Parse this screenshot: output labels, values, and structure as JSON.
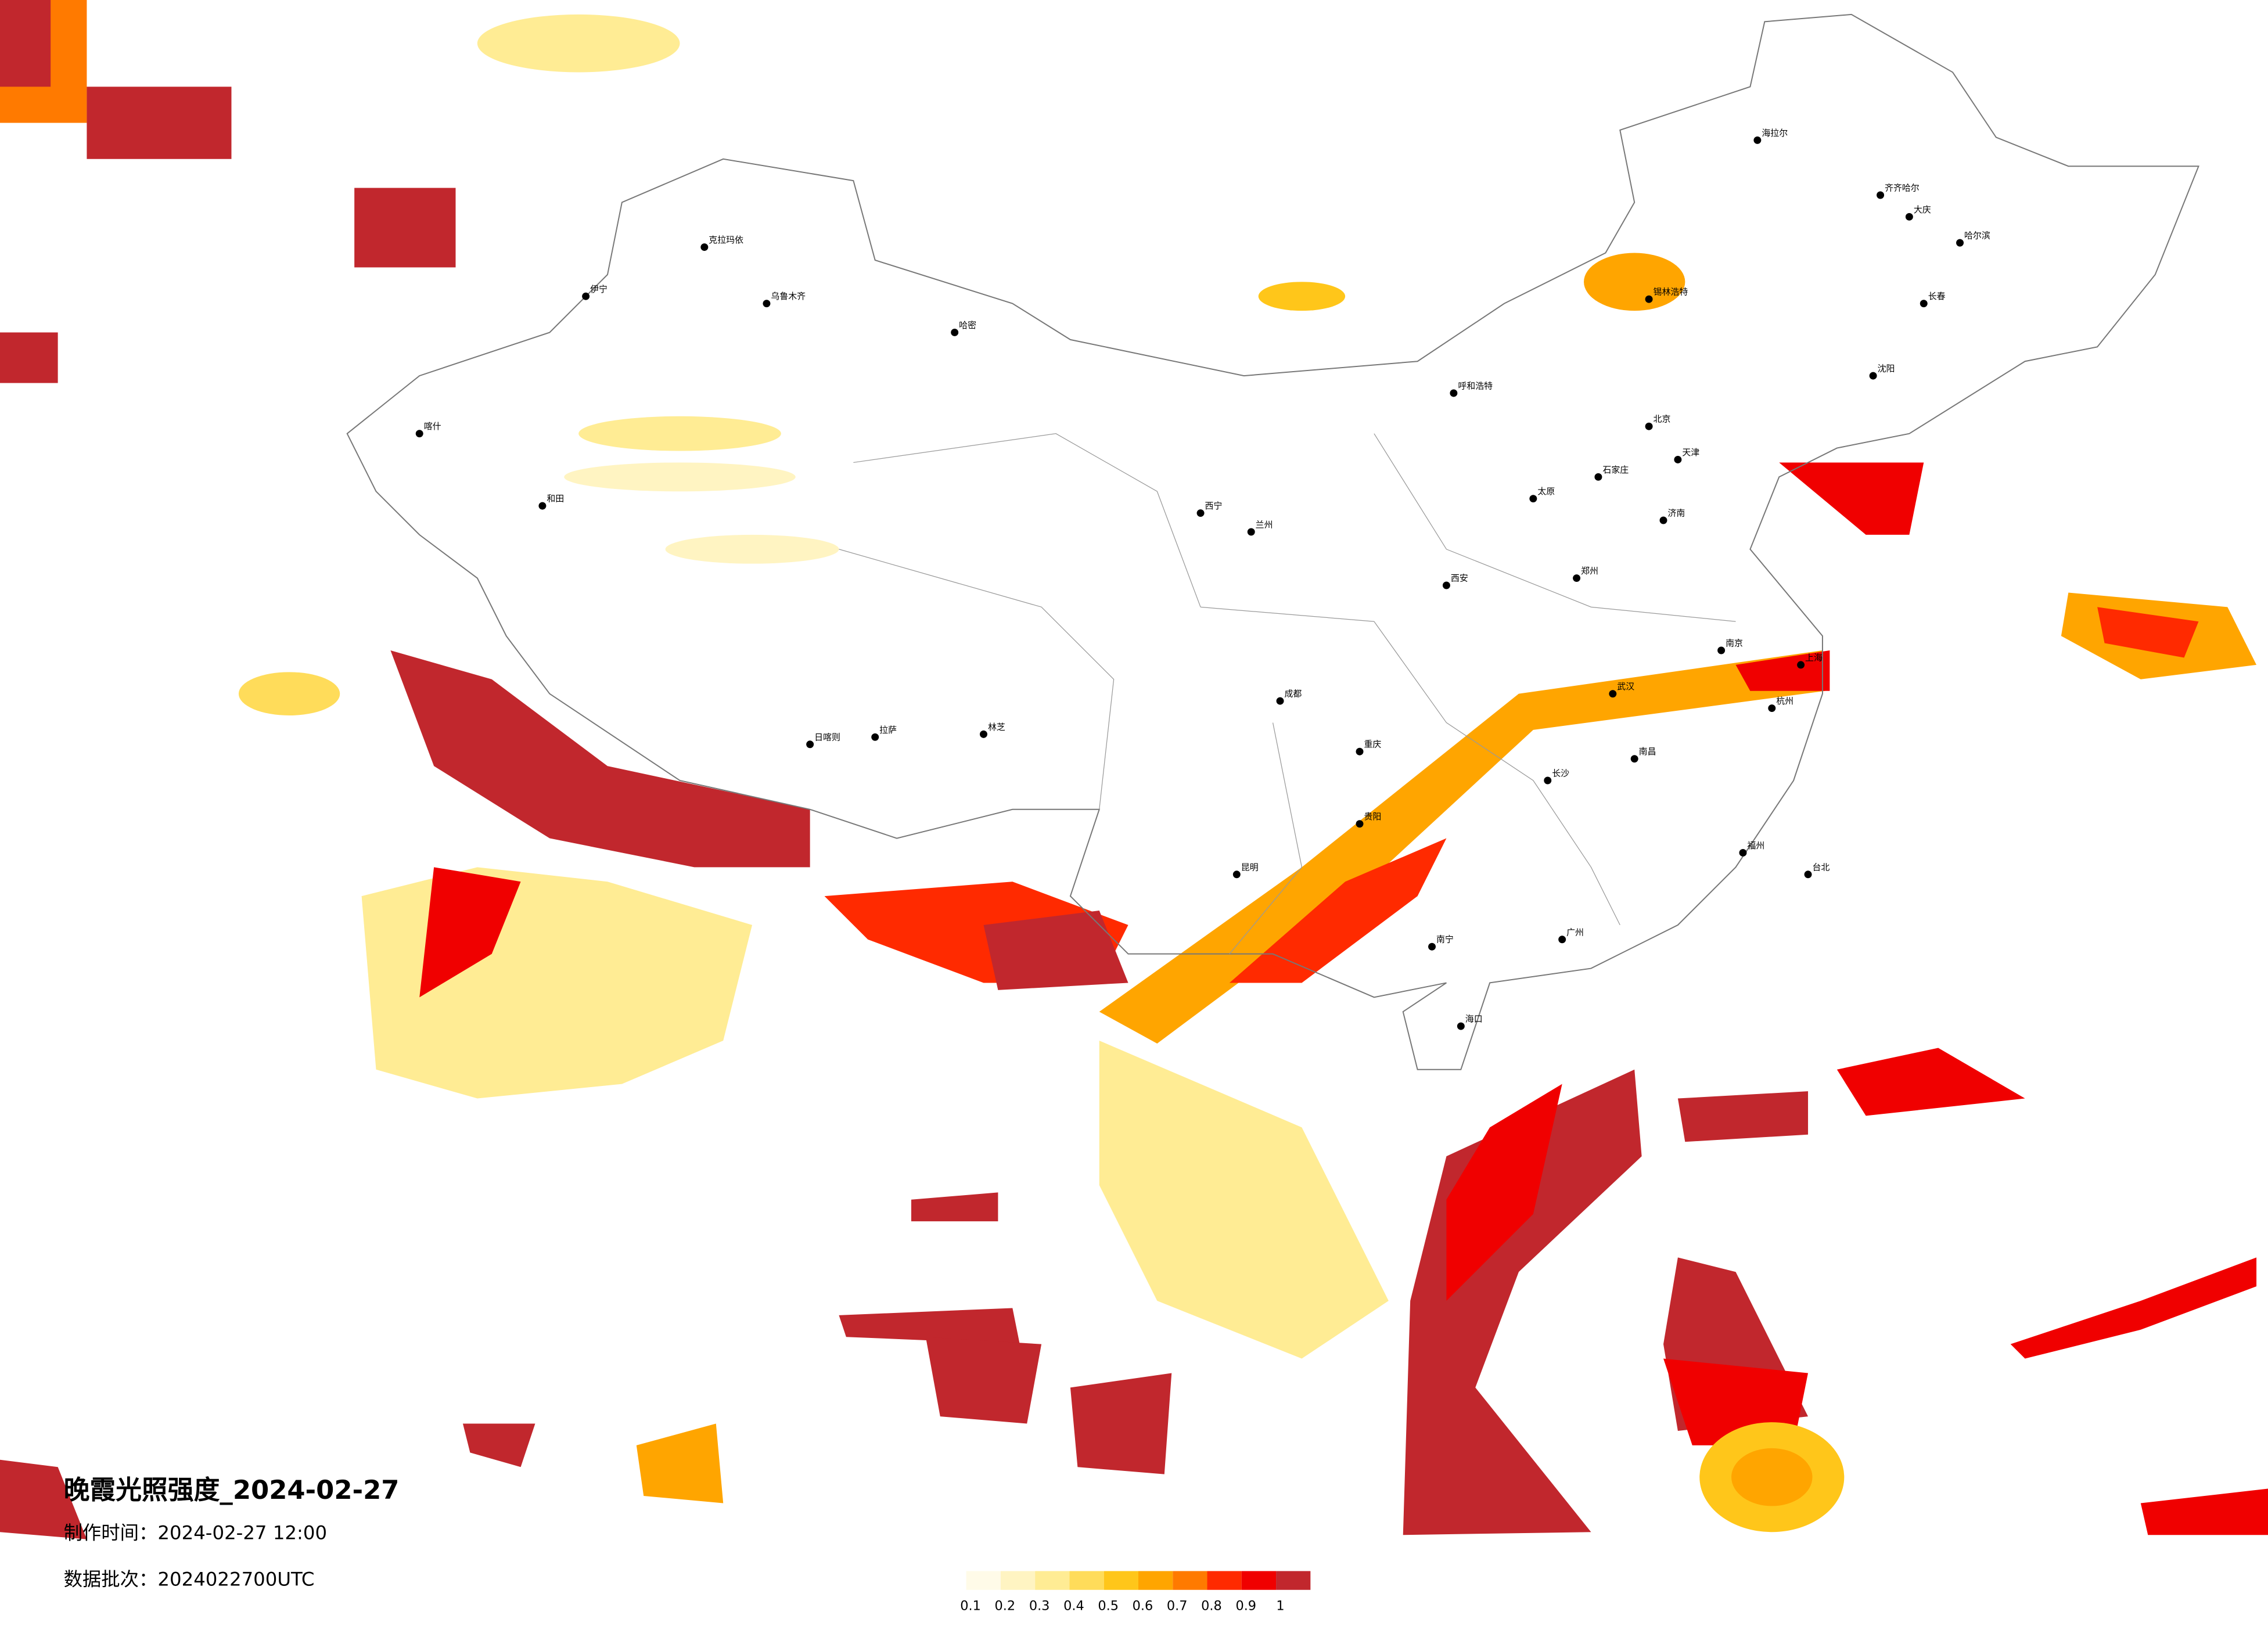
{
  "header": {
    "title": "晚霞光照强度_2024-02-27",
    "made_time": "制作时间：2024-02-27 12:00",
    "batch": "数据批次：2024022700UTC"
  },
  "colorbar": {
    "colors": [
      "#fffbe8",
      "#fff4c2",
      "#ffec94",
      "#ffdc5a",
      "#ffc61a",
      "#ffa500",
      "#ff7a00",
      "#ff2a00",
      "#f00000",
      "#c1272d"
    ],
    "ticks": [
      0.1,
      0.2,
      0.3,
      0.4,
      0.5,
      0.6,
      0.7,
      0.8,
      0.9,
      1
    ]
  },
  "cities": [
    "克拉玛依",
    "乌鲁木齐",
    "伊宁",
    "喀什",
    "和田",
    "哈密",
    "拉萨",
    "日喀则",
    "林芝",
    "西宁",
    "兰州",
    "呼和浩特",
    "北京",
    "天津",
    "石家庄",
    "太原",
    "郑州",
    "西安",
    "武汉",
    "南京",
    "上海",
    "杭州",
    "长沙",
    "南昌",
    "福州",
    "广州",
    "南宁",
    "昆明",
    "贵阳",
    "成都",
    "重庆",
    "哈尔滨",
    "长春",
    "沈阳",
    "济南",
    "海口",
    "台北",
    "大庆",
    "齐齐哈尔",
    "海拉尔",
    "锡林浩特"
  ]
}
